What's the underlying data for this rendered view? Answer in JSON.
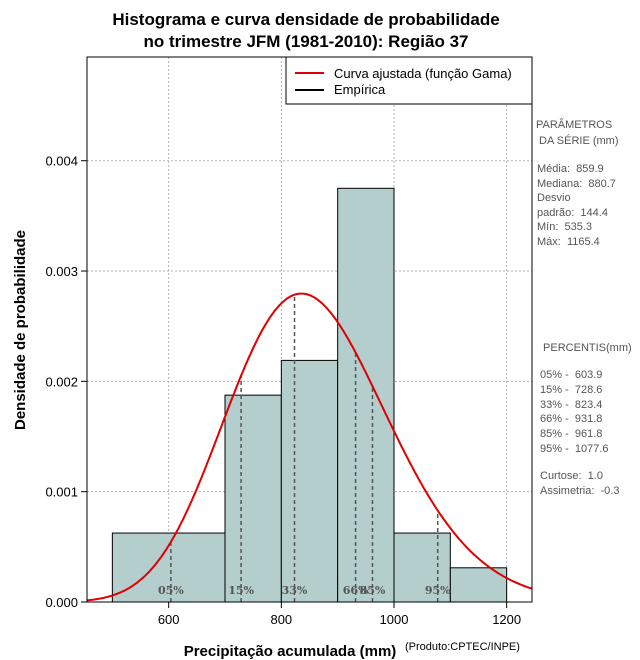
{
  "chart_data": {
    "type": "bar",
    "title_lines": [
      "Histograma e curva densidade de probabilidade",
      "no trimestre JFM (1981-2010): Região 37"
    ],
    "xlabel": "Precipitação acumulada (mm)",
    "ylabel": "Densidade de probabilidade",
    "credit": "(Produto:CPTEC/INPE)",
    "xlim": [
      455,
      1245
    ],
    "ylim": [
      0,
      0.00494
    ],
    "x_ticks": [
      600,
      800,
      1000,
      1200
    ],
    "y_ticks": [
      0.0,
      0.001,
      0.002,
      0.003,
      0.004
    ],
    "y_tick_labels": [
      "0.000",
      "0.001",
      "0.002",
      "0.003",
      "0.004"
    ],
    "grid": true,
    "bins": [
      {
        "x0": 500,
        "x1": 700,
        "density": 0.000625
      },
      {
        "x0": 700,
        "x1": 800,
        "density": 0.001875
      },
      {
        "x0": 800,
        "x1": 900,
        "density": 0.00219
      },
      {
        "x0": 900,
        "x1": 1000,
        "density": 0.00375
      },
      {
        "x0": 1000,
        "x1": 1100,
        "density": 0.000625
      },
      {
        "x0": 1100,
        "x1": 1200,
        "density": 0.00031
      }
    ],
    "gamma_fit": {
      "mean": 859.9,
      "sd": 144.4
    },
    "percentile_lines": [
      {
        "label": "05%",
        "value": 603.9
      },
      {
        "label": "15%",
        "value": 728.6
      },
      {
        "label": "33%",
        "value": 823.4
      },
      {
        "label": "66%",
        "value": 931.8
      },
      {
        "label": "85%",
        "value": 961.8
      },
      {
        "label": "95%",
        "value": 1077.6
      }
    ],
    "legend": {
      "position": "top-right",
      "entries": [
        {
          "label": "Curva ajustada (função Gama)",
          "color": "#e00000"
        },
        {
          "label": "Empírica",
          "color": "#000000"
        }
      ]
    },
    "colors": {
      "bar_fill": "#b4cecd",
      "curve": "#e00000",
      "grid": "#b0b0b0",
      "percentile": "#555555"
    }
  },
  "side_panel": {
    "parametros_lines": [
      "PARÂMETROS",
      " DA SÉRIE (mm)"
    ],
    "stats_lines": [
      "Média:  859.9",
      "Mediana:  880.7",
      "Desvio",
      "padrão:  144.4",
      "Mín:  535.3",
      "Máx:  1165.4"
    ],
    "percentis_title": " PERCENTIS(mm)",
    "percentis_lines": [
      "05% -  603.9",
      "15% -  728.6",
      "33% -  823.4",
      "66% -  931.8",
      "85% -  961.8",
      "95% -  1077.6"
    ],
    "shape_lines": [
      "Curtose:  1.0",
      "Assimetria:  -0.3"
    ]
  }
}
